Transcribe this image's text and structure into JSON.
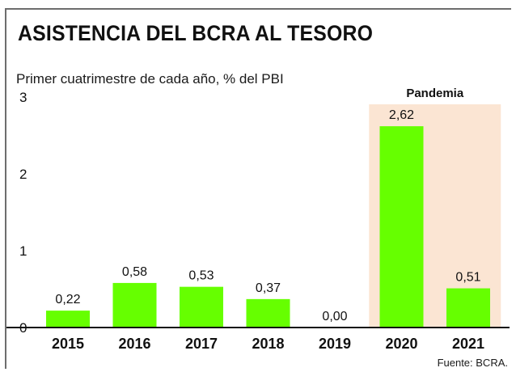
{
  "title": "ASISTENCIA DEL BCRA AL TESORO",
  "subtitle": "Primer cuatrimestre de cada año, % del PBI",
  "source": "Fuente: BCRA.",
  "highlight": {
    "label": "Pandemia",
    "categories": [
      "2020",
      "2021"
    ],
    "color": "#fbe5d3"
  },
  "colors": {
    "bar": "#66ff00",
    "axis": "#111111",
    "text": "#111111"
  },
  "chart_data": {
    "type": "bar",
    "title": "ASISTENCIA DEL BCRA AL TESORO",
    "subtitle": "Primer cuatrimestre de cada año, % del PBI",
    "categories": [
      "2015",
      "2016",
      "2017",
      "2018",
      "2019",
      "2020",
      "2021"
    ],
    "values": [
      0.22,
      0.58,
      0.53,
      0.37,
      0.0,
      2.62,
      0.51
    ],
    "value_labels": [
      "0,22",
      "0,58",
      "0,53",
      "0,37",
      "0,00",
      "2,62",
      "0,51"
    ],
    "yticks": [
      "0",
      "1",
      "2",
      "3"
    ],
    "ylim": [
      0,
      3
    ],
    "grid": false,
    "legend": "none"
  }
}
